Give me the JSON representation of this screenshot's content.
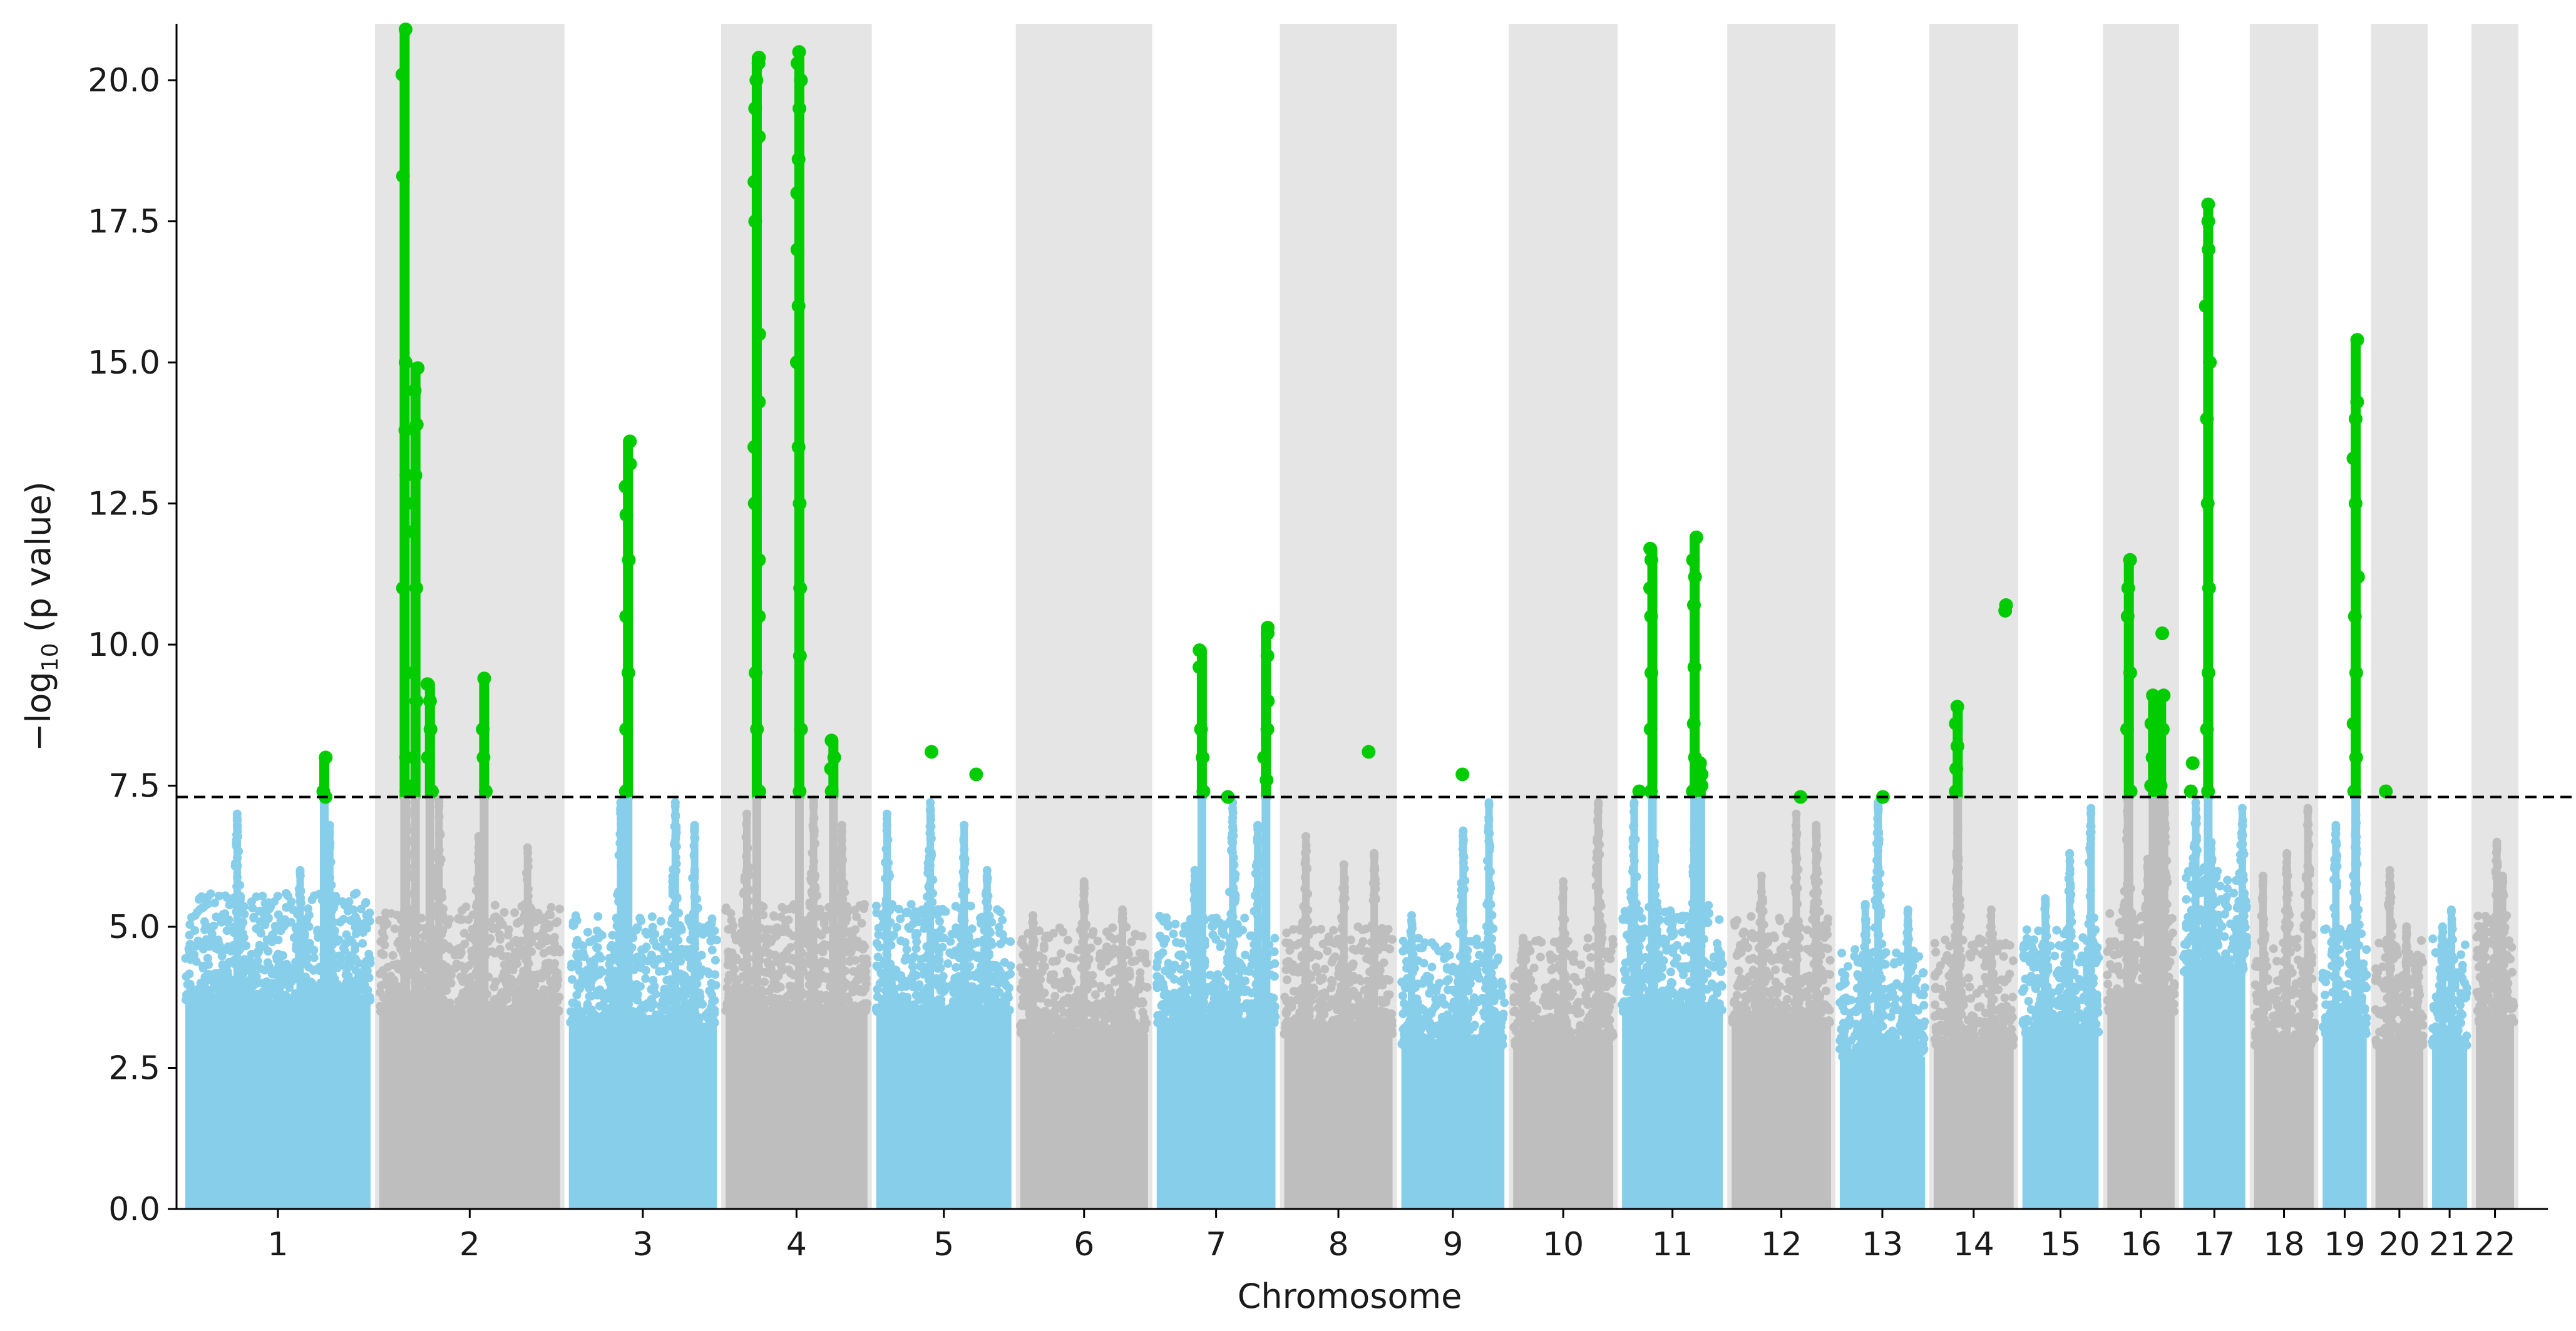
{
  "chart_data": {
    "type": "scatter",
    "subtype": "manhattan",
    "title": "",
    "xlabel": "Chromosome",
    "ylabel_prefix": "−log",
    "ylabel_sub": "10",
    "ylabel_suffix": " (p value)",
    "ylim": [
      0,
      21
    ],
    "yticks": [
      "0.0",
      "2.5",
      "5.0",
      "7.5",
      "10.0",
      "12.5",
      "15.0",
      "17.5",
      "20.0"
    ],
    "significance_threshold": 7.3,
    "grid": false,
    "colors": {
      "odd_chromosome": "#87ceeb",
      "even_chromosome": "#bebebe",
      "significant": "#00cc00",
      "band": "#e5e5e5",
      "threshold_line": "#000000"
    },
    "chromosomes": [
      {
        "label": "1",
        "length": 248,
        "base_max": 5.0,
        "peaks": [
          [
            0.28,
            7.0
          ],
          [
            0.62,
            6.0
          ],
          [
            0.78,
            6.8
          ]
        ],
        "sig": [
          [
            0.75,
            [
              7.3,
              7.4,
              8.0
            ]
          ]
        ]
      },
      {
        "label": "2",
        "length": 242,
        "base_max": 4.8,
        "peaks": [
          [
            0.15,
            7.2
          ],
          [
            0.33,
            7.5
          ],
          [
            0.55,
            6.6
          ],
          [
            0.82,
            6.4
          ]
        ],
        "sig": [
          [
            0.14,
            [
              7.4,
              8.0,
              9.5,
              11.0,
              12.5,
              13.0,
              13.8,
              15.0,
              18.3,
              20.1,
              20.9
            ]
          ],
          [
            0.2,
            [
              7.5,
              9.0,
              11.0,
              12.0,
              13.0,
              13.9,
              14.5,
              14.9
            ]
          ],
          [
            0.28,
            [
              7.4,
              8.0,
              8.5,
              9.0,
              9.3
            ]
          ],
          [
            0.58,
            [
              7.4,
              8.0,
              8.5,
              9.4
            ]
          ]
        ]
      },
      {
        "label": "3",
        "length": 198,
        "base_max": 4.6,
        "peaks": [
          [
            0.35,
            7.2
          ],
          [
            0.72,
            7.2
          ],
          [
            0.85,
            6.8
          ]
        ],
        "sig": [
          [
            0.4,
            [
              7.4,
              8.5,
              9.5,
              10.5,
              11.5,
              12.3,
              12.8,
              13.2,
              13.6
            ]
          ]
        ]
      },
      {
        "label": "4",
        "length": 190,
        "base_max": 4.8,
        "peaks": [
          [
            0.15,
            7.0
          ],
          [
            0.62,
            7.3
          ],
          [
            0.82,
            6.8
          ]
        ],
        "sig": [
          [
            0.22,
            [
              7.4,
              8.5,
              9.5,
              10.5,
              11.5,
              12.5,
              13.5,
              14.3,
              15.5,
              17.5,
              18.2,
              19.0,
              19.5,
              20.0,
              20.3,
              20.4
            ]
          ],
          [
            0.52,
            [
              7.4,
              8.5,
              9.8,
              11.0,
              12.5,
              13.5,
              15.0,
              16.0,
              17.0,
              18.0,
              18.6,
              19.5,
              20.0,
              20.3,
              20.5
            ]
          ],
          [
            0.76,
            [
              7.4,
              7.8,
              8.0,
              8.3
            ]
          ]
        ]
      },
      {
        "label": "5",
        "length": 181,
        "base_max": 4.8,
        "peaks": [
          [
            0.08,
            7.0
          ],
          [
            0.4,
            7.2
          ],
          [
            0.65,
            6.8
          ],
          [
            0.82,
            6.0
          ]
        ],
        "sig": [
          [
            0.4,
            [
              8.1
            ]
          ],
          [
            0.75,
            [
              7.7
            ]
          ]
        ]
      },
      {
        "label": "6",
        "length": 171,
        "base_max": 4.4,
        "peaks": [
          [
            0.1,
            5.2
          ],
          [
            0.5,
            5.8
          ],
          [
            0.8,
            5.3
          ]
        ],
        "sig": []
      },
      {
        "label": "7",
        "length": 159,
        "base_max": 4.6,
        "peaks": [
          [
            0.32,
            6.0
          ],
          [
            0.64,
            7.2
          ],
          [
            0.85,
            6.8
          ]
        ],
        "sig": [
          [
            0.38,
            [
              7.4,
              8.0,
              8.5,
              9.6,
              9.9
            ]
          ],
          [
            0.62,
            [
              7.3
            ]
          ],
          [
            0.92,
            [
              7.6,
              8.0,
              8.5,
              9.0,
              9.8,
              10.2,
              10.3
            ]
          ]
        ]
      },
      {
        "label": "8",
        "length": 145,
        "base_max": 4.4,
        "peaks": [
          [
            0.2,
            6.6
          ],
          [
            0.55,
            6.1
          ],
          [
            0.83,
            6.3
          ]
        ],
        "sig": [
          [
            0.8,
            [
              8.1
            ]
          ]
        ]
      },
      {
        "label": "9",
        "length": 138,
        "base_max": 4.2,
        "peaks": [
          [
            0.1,
            5.2
          ],
          [
            0.6,
            6.7
          ],
          [
            0.85,
            7.2
          ]
        ],
        "sig": [
          [
            0.6,
            [
              7.7
            ]
          ]
        ]
      },
      {
        "label": "10",
        "length": 134,
        "base_max": 4.2,
        "peaks": [
          [
            0.1,
            4.8
          ],
          [
            0.5,
            5.8
          ],
          [
            0.85,
            7.2
          ]
        ],
        "sig": []
      },
      {
        "label": "11",
        "length": 135,
        "base_max": 4.8,
        "peaks": [
          [
            0.12,
            7.2
          ],
          [
            0.32,
            6.5
          ],
          [
            0.72,
            6.8
          ]
        ],
        "sig": [
          [
            0.15,
            [
              7.4
            ]
          ],
          [
            0.3,
            [
              7.4,
              8.5,
              9.5,
              10.5,
              11.0,
              11.5,
              11.7
            ]
          ],
          [
            0.72,
            [
              7.4,
              8.0,
              8.6,
              9.6,
              10.7,
              11.2,
              11.5,
              11.9
            ]
          ],
          [
            0.78,
            [
              7.5,
              7.7,
              7.9
            ]
          ]
        ]
      },
      {
        "label": "12",
        "length": 133,
        "base_max": 4.6,
        "peaks": [
          [
            0.3,
            5.9
          ],
          [
            0.65,
            7.0
          ],
          [
            0.85,
            6.8
          ]
        ],
        "sig": [
          [
            0.68,
            [
              7.3
            ]
          ]
        ]
      },
      {
        "label": "13",
        "length": 114,
        "base_max": 4.0,
        "peaks": [
          [
            0.3,
            5.4
          ],
          [
            0.45,
            7.2
          ],
          [
            0.8,
            5.3
          ]
        ],
        "sig": [
          [
            0.5,
            [
              7.3
            ]
          ]
        ]
      },
      {
        "label": "14",
        "length": 107,
        "base_max": 4.2,
        "peaks": [
          [
            0.3,
            5.8
          ],
          [
            0.3,
            6.8
          ],
          [
            0.72,
            5.3
          ]
        ],
        "sig": [
          [
            0.3,
            [
              7.4,
              7.8,
              8.2,
              8.6,
              8.9
            ]
          ],
          [
            0.88,
            [
              10.6,
              10.7
            ]
          ]
        ]
      },
      {
        "label": "15",
        "length": 102,
        "base_max": 4.4,
        "peaks": [
          [
            0.3,
            5.5
          ],
          [
            0.62,
            6.3
          ],
          [
            0.9,
            7.1
          ]
        ],
        "sig": []
      },
      {
        "label": "16",
        "length": 90,
        "base_max": 4.8,
        "peaks": [
          [
            0.3,
            7.3
          ],
          [
            0.6,
            6.2
          ],
          [
            0.85,
            7.2
          ]
        ],
        "sig": [
          [
            0.32,
            [
              7.4,
              8.5,
              9.5,
              10.5,
              11.0,
              11.5
            ]
          ],
          [
            0.68,
            [
              7.5,
              8.0,
              8.6,
              9.1
            ]
          ],
          [
            0.8,
            [
              7.5,
              8.5,
              9.1
            ]
          ],
          [
            0.78,
            [
              10.2
            ]
          ]
        ]
      },
      {
        "label": "17",
        "length": 83,
        "base_max": 5.5,
        "peaks": [
          [
            0.2,
            7.2
          ],
          [
            0.45,
            6.5
          ],
          [
            0.95,
            7.1
          ]
        ],
        "sig": [
          [
            0.14,
            [
              7.4,
              7.9
            ]
          ],
          [
            0.4,
            [
              7.4,
              8.5,
              9.5,
              11.0,
              12.5,
              14.0,
              15.0,
              16.0,
              17.0,
              17.5,
              17.8
            ]
          ]
        ]
      },
      {
        "label": "18",
        "length": 80,
        "base_max": 4.2,
        "peaks": [
          [
            0.15,
            5.9
          ],
          [
            0.55,
            6.3
          ],
          [
            0.9,
            7.1
          ]
        ],
        "sig": []
      },
      {
        "label": "19",
        "length": 59,
        "base_max": 4.4,
        "peaks": [
          [
            0.3,
            6.8
          ],
          [
            0.75,
            7.2
          ]
        ],
        "sig": [
          [
            0.75,
            [
              7.4,
              8.0,
              8.6,
              9.5,
              10.5,
              11.2,
              12.5,
              13.3,
              14.0,
              14.3,
              15.4
            ]
          ]
        ]
      },
      {
        "label": "20",
        "length": 64,
        "base_max": 4.2,
        "peaks": [
          [
            0.3,
            6.0
          ],
          [
            0.65,
            5.0
          ],
          [
            0.88,
            4.5
          ]
        ],
        "sig": [
          [
            0.18,
            [
              7.4
            ]
          ]
        ]
      },
      {
        "label": "21",
        "length": 47,
        "base_max": 4.2,
        "peaks": [
          [
            0.3,
            5.0
          ],
          [
            0.55,
            5.3
          ]
        ],
        "sig": []
      },
      {
        "label": "22",
        "length": 51,
        "base_max": 4.6,
        "peaks": [
          [
            0.2,
            5.0
          ],
          [
            0.7,
            5.9
          ],
          [
            0.55,
            6.5
          ]
        ],
        "sig": []
      }
    ]
  }
}
